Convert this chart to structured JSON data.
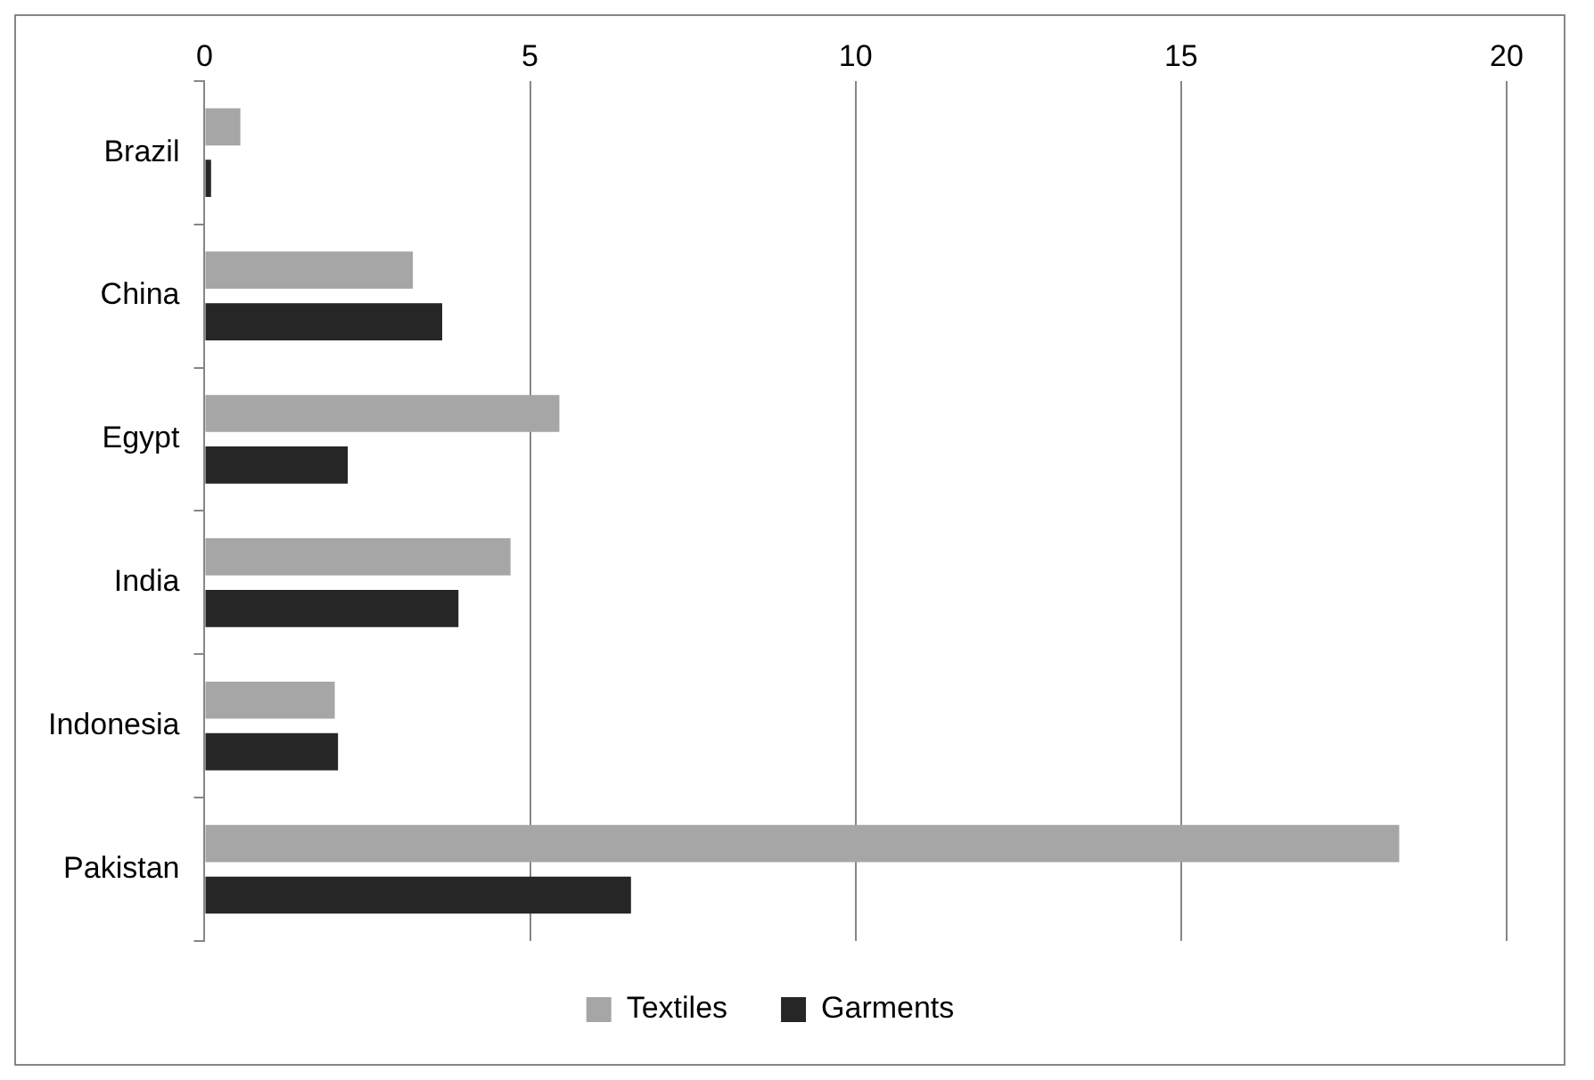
{
  "chart_data": {
    "type": "bar",
    "orientation": "horizontal",
    "categories": [
      "Brazil",
      "China",
      "Egypt",
      "India",
      "Indonesia",
      "Pakistan"
    ],
    "series": [
      {
        "name": "Textiles",
        "color": "#a6a6a6",
        "values": [
          0.55,
          3.2,
          5.45,
          4.7,
          2.0,
          18.35
        ]
      },
      {
        "name": "Garments",
        "color": "#262626",
        "values": [
          0.1,
          3.65,
          2.2,
          3.9,
          2.05,
          6.55
        ]
      }
    ],
    "xlim": [
      0,
      20
    ],
    "xticks": [
      0,
      5,
      10,
      15,
      20
    ],
    "grid": "x",
    "legend": "bottom"
  }
}
